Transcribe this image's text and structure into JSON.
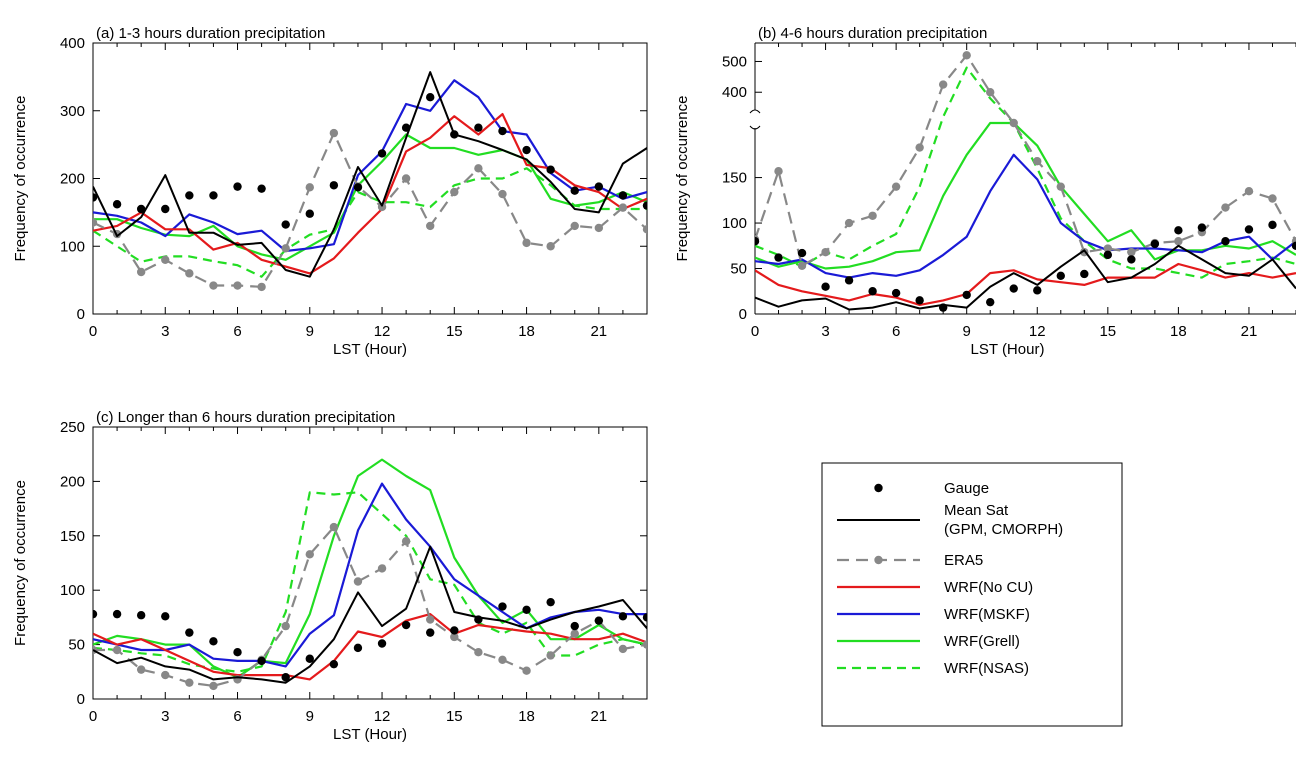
{
  "colors": {
    "gauge": "#000000",
    "mean_sat": "#000000",
    "era5": "#888888",
    "nocu": "#e41a1c",
    "mskf": "#1a1ad6",
    "grell": "#22dd22",
    "nsas": "#22dd22"
  },
  "legend": {
    "placement": "right of panel (c)",
    "entries": [
      {
        "key": "gauge",
        "label": "Gauge",
        "style": "dots"
      },
      {
        "key": "mean_sat",
        "label": "Mean Sat",
        "label2": "(GPM, CMORPH)",
        "style": "solid"
      },
      {
        "key": "era5",
        "label": "ERA5",
        "style": "dashed-dots"
      },
      {
        "key": "nocu",
        "label": "WRF(No CU)",
        "style": "solid"
      },
      {
        "key": "mskf",
        "label": "WRF(MSKF)",
        "style": "solid"
      },
      {
        "key": "grell",
        "label": "WRF(Grell)",
        "style": "solid"
      },
      {
        "key": "nsas",
        "label": "WRF(NSAS)",
        "style": "dashed"
      }
    ]
  },
  "chart_data": [
    {
      "id": "a",
      "type": "line",
      "title": "(a) 1-3 hours duration precipitation",
      "xlabel": "LST (Hour)",
      "ylabel": "Frequency of occurrence",
      "xlim": [
        0,
        23
      ],
      "ylim": [
        0,
        400
      ],
      "xticks": [
        0,
        3,
        6,
        9,
        12,
        15,
        18,
        21
      ],
      "yticks": [
        0,
        100,
        200,
        300,
        400
      ],
      "x": [
        0,
        1,
        2,
        3,
        4,
        5,
        6,
        7,
        8,
        9,
        10,
        11,
        12,
        13,
        14,
        15,
        16,
        17,
        18,
        19,
        20,
        21,
        22,
        23
      ],
      "series": [
        {
          "key": "gauge",
          "name": "Gauge",
          "values": [
            172,
            162,
            155,
            155,
            175,
            175,
            188,
            185,
            132,
            148,
            190,
            187,
            237,
            275,
            320,
            265,
            275,
            270,
            242,
            213,
            182,
            188,
            175,
            160
          ]
        },
        {
          "key": "mean_sat",
          "name": "Mean Sat (GPM, CMORPH)",
          "values": [
            188,
            115,
            143,
            205,
            120,
            120,
            102,
            105,
            65,
            55,
            125,
            217,
            160,
            260,
            357,
            265,
            255,
            242,
            228,
            195,
            155,
            150,
            222,
            245
          ]
        },
        {
          "key": "era5",
          "name": "ERA5",
          "values": [
            135,
            118,
            62,
            80,
            60,
            42,
            42,
            40,
            97,
            187,
            267,
            188,
            158,
            200,
            130,
            180,
            215,
            177,
            105,
            100,
            130,
            127,
            157,
            125
          ]
        },
        {
          "key": "nocu",
          "name": "WRF(No CU)",
          "values": [
            123,
            130,
            150,
            125,
            125,
            95,
            105,
            80,
            70,
            60,
            82,
            120,
            155,
            240,
            260,
            292,
            265,
            295,
            220,
            215,
            190,
            180,
            155,
            170
          ]
        },
        {
          "key": "mskf",
          "name": "WRF(MSKF)",
          "values": [
            150,
            145,
            135,
            115,
            147,
            135,
            118,
            123,
            93,
            97,
            103,
            205,
            240,
            310,
            300,
            345,
            320,
            270,
            265,
            208,
            182,
            188,
            170,
            180
          ]
        },
        {
          "key": "grell",
          "name": "WRF(Grell)",
          "values": [
            140,
            140,
            127,
            117,
            115,
            130,
            100,
            88,
            80,
            100,
            120,
            190,
            225,
            265,
            245,
            245,
            235,
            242,
            228,
            170,
            160,
            165,
            180,
            165
          ]
        },
        {
          "key": "nsas",
          "name": "WRF(NSAS)",
          "values": [
            123,
            100,
            77,
            85,
            85,
            78,
            72,
            55,
            95,
            117,
            125,
            180,
            165,
            165,
            158,
            190,
            200,
            200,
            215,
            190,
            160,
            155,
            155,
            155
          ]
        }
      ]
    },
    {
      "id": "b",
      "type": "line",
      "title": "(b) 4-6 hours duration precipitation",
      "xlabel": "LST (Hour)",
      "ylabel": "Frequency of occurrence",
      "xlim": [
        0,
        23
      ],
      "scale": "broken",
      "ylim_lower": [
        0,
        210
      ],
      "ylim_upper": [
        300,
        560
      ],
      "yticks": [
        0,
        50,
        100,
        150,
        400,
        500
      ],
      "xticks": [
        0,
        3,
        6,
        9,
        12,
        15,
        18,
        21
      ],
      "x": [
        0,
        1,
        2,
        3,
        4,
        5,
        6,
        7,
        8,
        9,
        10,
        11,
        12,
        13,
        14,
        15,
        16,
        17,
        18,
        19,
        20,
        21,
        22,
        23
      ],
      "series": [
        {
          "key": "gauge",
          "name": "Gauge",
          "values": [
            80,
            62,
            67,
            30,
            37,
            25,
            23,
            15,
            7,
            21,
            13,
            28,
            26,
            42,
            44,
            65,
            60,
            77,
            92,
            95,
            80,
            93,
            98,
            75
          ]
        },
        {
          "key": "mean_sat",
          "name": "Mean Sat (GPM, CMORPH)",
          "values": [
            18,
            8,
            15,
            17,
            5,
            7,
            13,
            6,
            10,
            7,
            30,
            45,
            32,
            52,
            70,
            35,
            40,
            55,
            75,
            60,
            45,
            42,
            60,
            28
          ]
        },
        {
          "key": "era5",
          "name": "ERA5",
          "values": [
            82,
            157,
            53,
            68,
            100,
            108,
            140,
            183,
            425,
            520,
            400,
            220,
            168,
            140,
            68,
            72,
            68,
            78,
            80,
            90,
            117,
            135,
            127,
            80
          ]
        },
        {
          "key": "nocu",
          "name": "WRF(No CU)",
          "values": [
            48,
            32,
            25,
            20,
            15,
            22,
            18,
            10,
            15,
            22,
            45,
            48,
            38,
            35,
            32,
            40,
            40,
            40,
            55,
            48,
            40,
            45,
            40,
            45
          ]
        },
        {
          "key": "mskf",
          "name": "WRF(MSKF)",
          "values": [
            58,
            55,
            60,
            45,
            40,
            45,
            42,
            48,
            65,
            85,
            135,
            175,
            148,
            100,
            80,
            70,
            72,
            72,
            70,
            68,
            80,
            85,
            60,
            80
          ]
        },
        {
          "key": "grell",
          "name": "WRF(Grell)",
          "values": [
            62,
            52,
            58,
            50,
            52,
            58,
            68,
            70,
            130,
            175,
            215,
            225,
            185,
            140,
            110,
            80,
            92,
            60,
            70,
            70,
            75,
            72,
            80,
            65
          ]
        },
        {
          "key": "nsas",
          "name": "WRF(NSAS)",
          "values": [
            75,
            65,
            52,
            68,
            60,
            75,
            88,
            140,
            320,
            480,
            380,
            220,
            160,
            105,
            80,
            60,
            50,
            50,
            45,
            40,
            55,
            58,
            62,
            55
          ]
        }
      ]
    },
    {
      "id": "c",
      "type": "line",
      "title": "(c) Longer than 6 hours duration precipitation",
      "xlabel": "LST (Hour)",
      "ylabel": "Frequency of occurrence",
      "xlim": [
        0,
        23
      ],
      "ylim": [
        0,
        250
      ],
      "xticks": [
        0,
        3,
        6,
        9,
        12,
        15,
        18,
        21
      ],
      "yticks": [
        0,
        50,
        100,
        150,
        200,
        250
      ],
      "x": [
        0,
        1,
        2,
        3,
        4,
        5,
        6,
        7,
        8,
        9,
        10,
        11,
        12,
        13,
        14,
        15,
        16,
        17,
        18,
        19,
        20,
        21,
        22,
        23
      ],
      "series": [
        {
          "key": "gauge",
          "name": "Gauge",
          "values": [
            78,
            78,
            77,
            76,
            61,
            53,
            43,
            35,
            20,
            37,
            32,
            47,
            51,
            68,
            61,
            63,
            73,
            85,
            82,
            89,
            67,
            72,
            76,
            75
          ]
        },
        {
          "key": "mean_sat",
          "name": "Mean Sat (GPM, CMORPH)",
          "values": [
            45,
            33,
            38,
            30,
            27,
            18,
            20,
            18,
            15,
            30,
            55,
            98,
            67,
            83,
            140,
            80,
            75,
            72,
            65,
            73,
            80,
            85,
            91,
            65
          ]
        },
        {
          "key": "era5",
          "name": "ERA5",
          "values": [
            45,
            45,
            27,
            22,
            15,
            12,
            18,
            36,
            67,
            133,
            158,
            108,
            120,
            145,
            73,
            57,
            43,
            36,
            26,
            40,
            60,
            72,
            46,
            50
          ]
        },
        {
          "key": "nocu",
          "name": "WRF(No CU)",
          "values": [
            60,
            50,
            55,
            45,
            35,
            25,
            22,
            22,
            22,
            18,
            35,
            62,
            57,
            72,
            78,
            60,
            68,
            65,
            62,
            60,
            55,
            55,
            60,
            52
          ]
        },
        {
          "key": "mskf",
          "name": "WRF(MSKF)",
          "values": [
            55,
            50,
            45,
            45,
            50,
            37,
            35,
            35,
            30,
            60,
            77,
            155,
            198,
            165,
            140,
            110,
            95,
            80,
            65,
            75,
            80,
            82,
            78,
            78
          ]
        },
        {
          "key": "grell",
          "name": "WRF(Grell)",
          "values": [
            50,
            58,
            55,
            50,
            50,
            30,
            20,
            35,
            33,
            78,
            150,
            205,
            220,
            205,
            192,
            130,
            95,
            70,
            82,
            55,
            55,
            68,
            55,
            50
          ]
        },
        {
          "key": "nsas",
          "name": "WRF(NSAS)",
          "values": [
            47,
            45,
            42,
            40,
            32,
            28,
            25,
            30,
            80,
            190,
            188,
            190,
            170,
            150,
            110,
            105,
            70,
            60,
            70,
            40,
            40,
            50,
            55,
            50
          ]
        }
      ]
    }
  ]
}
